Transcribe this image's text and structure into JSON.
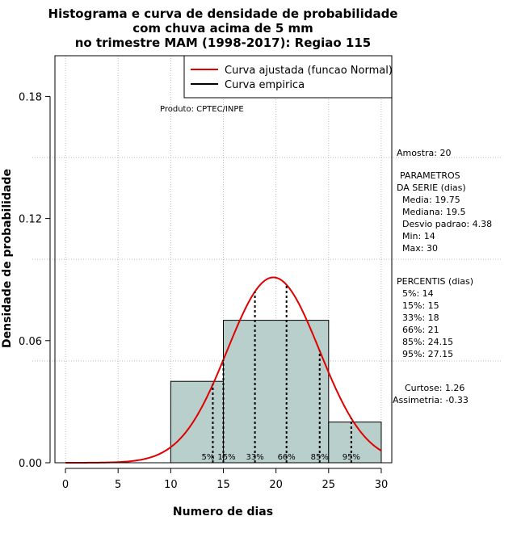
{
  "chart_data": {
    "type": "histogram",
    "title_lines": [
      "Histograma e curva de densidade de probabilidade",
      "com chuva acima de 5 mm",
      "no trimestre MAM (1998-2017): Regiao 115"
    ],
    "xlabel": "Numero de dias",
    "ylabel": "Densidade de probabilidade",
    "xlim": [
      -1,
      31
    ],
    "ylim": [
      0,
      0.2
    ],
    "x_ticks": [
      0,
      5,
      10,
      15,
      20,
      25,
      30
    ],
    "y_ticks": [
      0.0,
      0.06,
      0.12,
      0.18
    ],
    "y_tick_labels": [
      "0.00",
      "0.06",
      "0.12",
      "0.18"
    ],
    "bins": [
      {
        "start": 10,
        "end": 15,
        "density": 0.04
      },
      {
        "start": 15,
        "end": 25,
        "density": 0.07
      },
      {
        "start": 25,
        "end": 30,
        "density": 0.02
      }
    ],
    "normal_fit": {
      "mean": 19.75,
      "sd": 4.38,
      "x_from": 0,
      "x_to": 30,
      "color": "#e00000"
    },
    "percentile_lines": [
      {
        "label": "5%",
        "x": 14
      },
      {
        "label": "15%",
        "x": 15
      },
      {
        "label": "33%",
        "x": 18
      },
      {
        "label": "66%",
        "x": 21
      },
      {
        "label": "85%",
        "x": 24.15
      },
      {
        "label": "95%",
        "x": 27.15
      }
    ],
    "grid": true,
    "legend": {
      "position": "top-right",
      "entries": [
        {
          "label": "Curva ajustada (funcao Normal)",
          "color": "#e00000"
        },
        {
          "label": "Curva empirica",
          "color": "#000000"
        }
      ]
    },
    "annotations": {
      "produto": "Produto: CPTEC/INPE",
      "amostra": "Amostra: 20",
      "parametros": [
        "PARAMETROS",
        "DA SERIE (dias)",
        "Media: 19.75",
        "Mediana: 19.5",
        "Desvio padrao: 4.38",
        "Min: 14",
        "Max: 30"
      ],
      "percentis": [
        "PERCENTIS (dias)",
        "5%: 14",
        "15%: 15",
        "33%: 18",
        "66%: 21",
        "85%: 24.15",
        "95%: 27.15"
      ],
      "curtose": "Curtose: 1.26",
      "assimetria": "Assimetria: -0.33"
    },
    "colors": {
      "bar_fill": "#b8cfcc",
      "bar_stroke": "#000000",
      "grid": "#bbbbbb"
    }
  }
}
